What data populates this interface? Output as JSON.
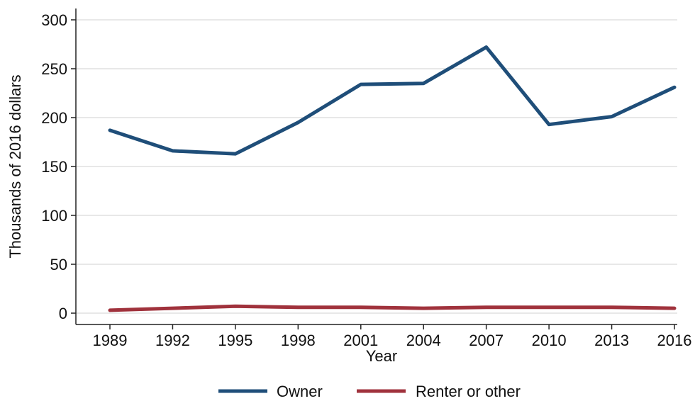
{
  "chart_data": {
    "type": "line",
    "title": "",
    "xlabel": "Year",
    "ylabel": "Thousands of 2016 dollars",
    "x": [
      "1989",
      "1992",
      "1995",
      "1998",
      "2001",
      "2004",
      "2007",
      "2010",
      "2013",
      "2016"
    ],
    "xlim": [
      1989,
      2016
    ],
    "ylim": [
      0,
      300
    ],
    "yticks": [
      0,
      50,
      100,
      150,
      200,
      250,
      300
    ],
    "grid": true,
    "legend_position": "bottom",
    "series": [
      {
        "name": "Owner",
        "color": "#1f4e79",
        "values": [
          187,
          166,
          163,
          195,
          234,
          235,
          272,
          193,
          201,
          231
        ]
      },
      {
        "name": "Renter or other",
        "color": "#a0323c",
        "values": [
          3,
          5,
          7,
          6,
          6,
          5,
          6,
          6,
          6,
          5
        ]
      }
    ]
  }
}
